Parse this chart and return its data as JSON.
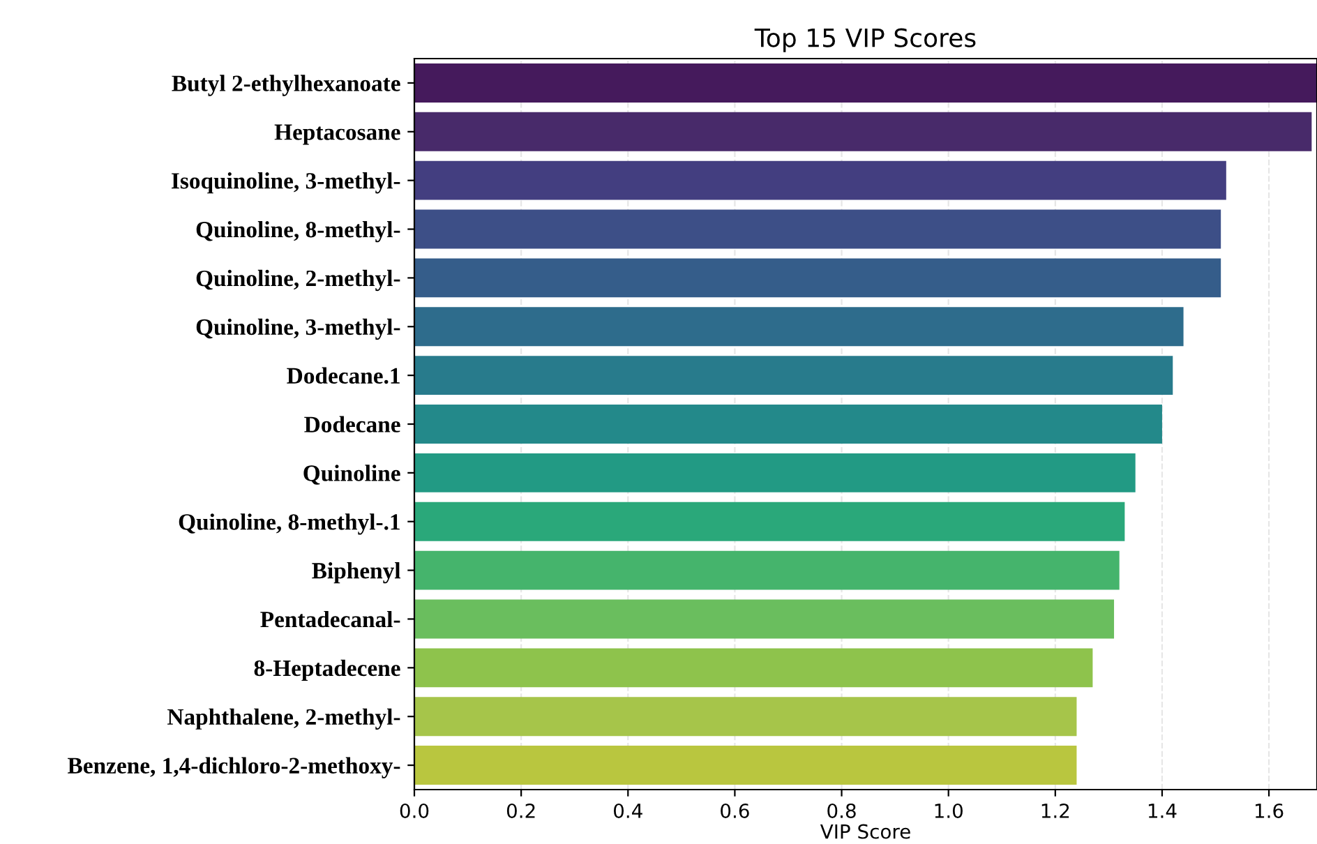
{
  "chart_data": {
    "type": "bar",
    "orientation": "horizontal",
    "title": "Top 15 VIP Scores",
    "xlabel": "VIP Score",
    "categories": [
      "Butyl 2-ethylhexanoate",
      "Heptacosane",
      "Isoquinoline, 3-methyl-",
      "Quinoline, 8-methyl-",
      "Quinoline, 2-methyl-",
      "Quinoline, 3-methyl-",
      "Dodecane.1",
      "Dodecane",
      "Quinoline",
      "Quinoline, 8-methyl-.1",
      "Biphenyl",
      "Pentadecanal-",
      "8-Heptadecene",
      "Naphthalene, 2-methyl-",
      "Benzene, 1,4-dichloro-2-methoxy-"
    ],
    "values": [
      1.69,
      1.68,
      1.52,
      1.51,
      1.51,
      1.44,
      1.42,
      1.4,
      1.35,
      1.33,
      1.32,
      1.31,
      1.27,
      1.24,
      1.24
    ],
    "colors": [
      "#451a5c",
      "#482a6a",
      "#433e80",
      "#3d4f87",
      "#355d8a",
      "#2e6c8c",
      "#287b8c",
      "#23898a",
      "#229a84",
      "#2aa87a",
      "#45b46c",
      "#6abe5e",
      "#8ec34c",
      "#a6c54a",
      "#b9c63f"
    ],
    "xlim": [
      0,
      1.69
    ],
    "xticks": [
      {
        "value": 0,
        "label": "0.0"
      },
      0.2,
      0.4,
      0.6,
      0.8,
      {
        "value": 1,
        "label": "1.0"
      },
      1.2,
      1.4,
      1.6
    ],
    "grid": "x",
    "legend": false
  }
}
